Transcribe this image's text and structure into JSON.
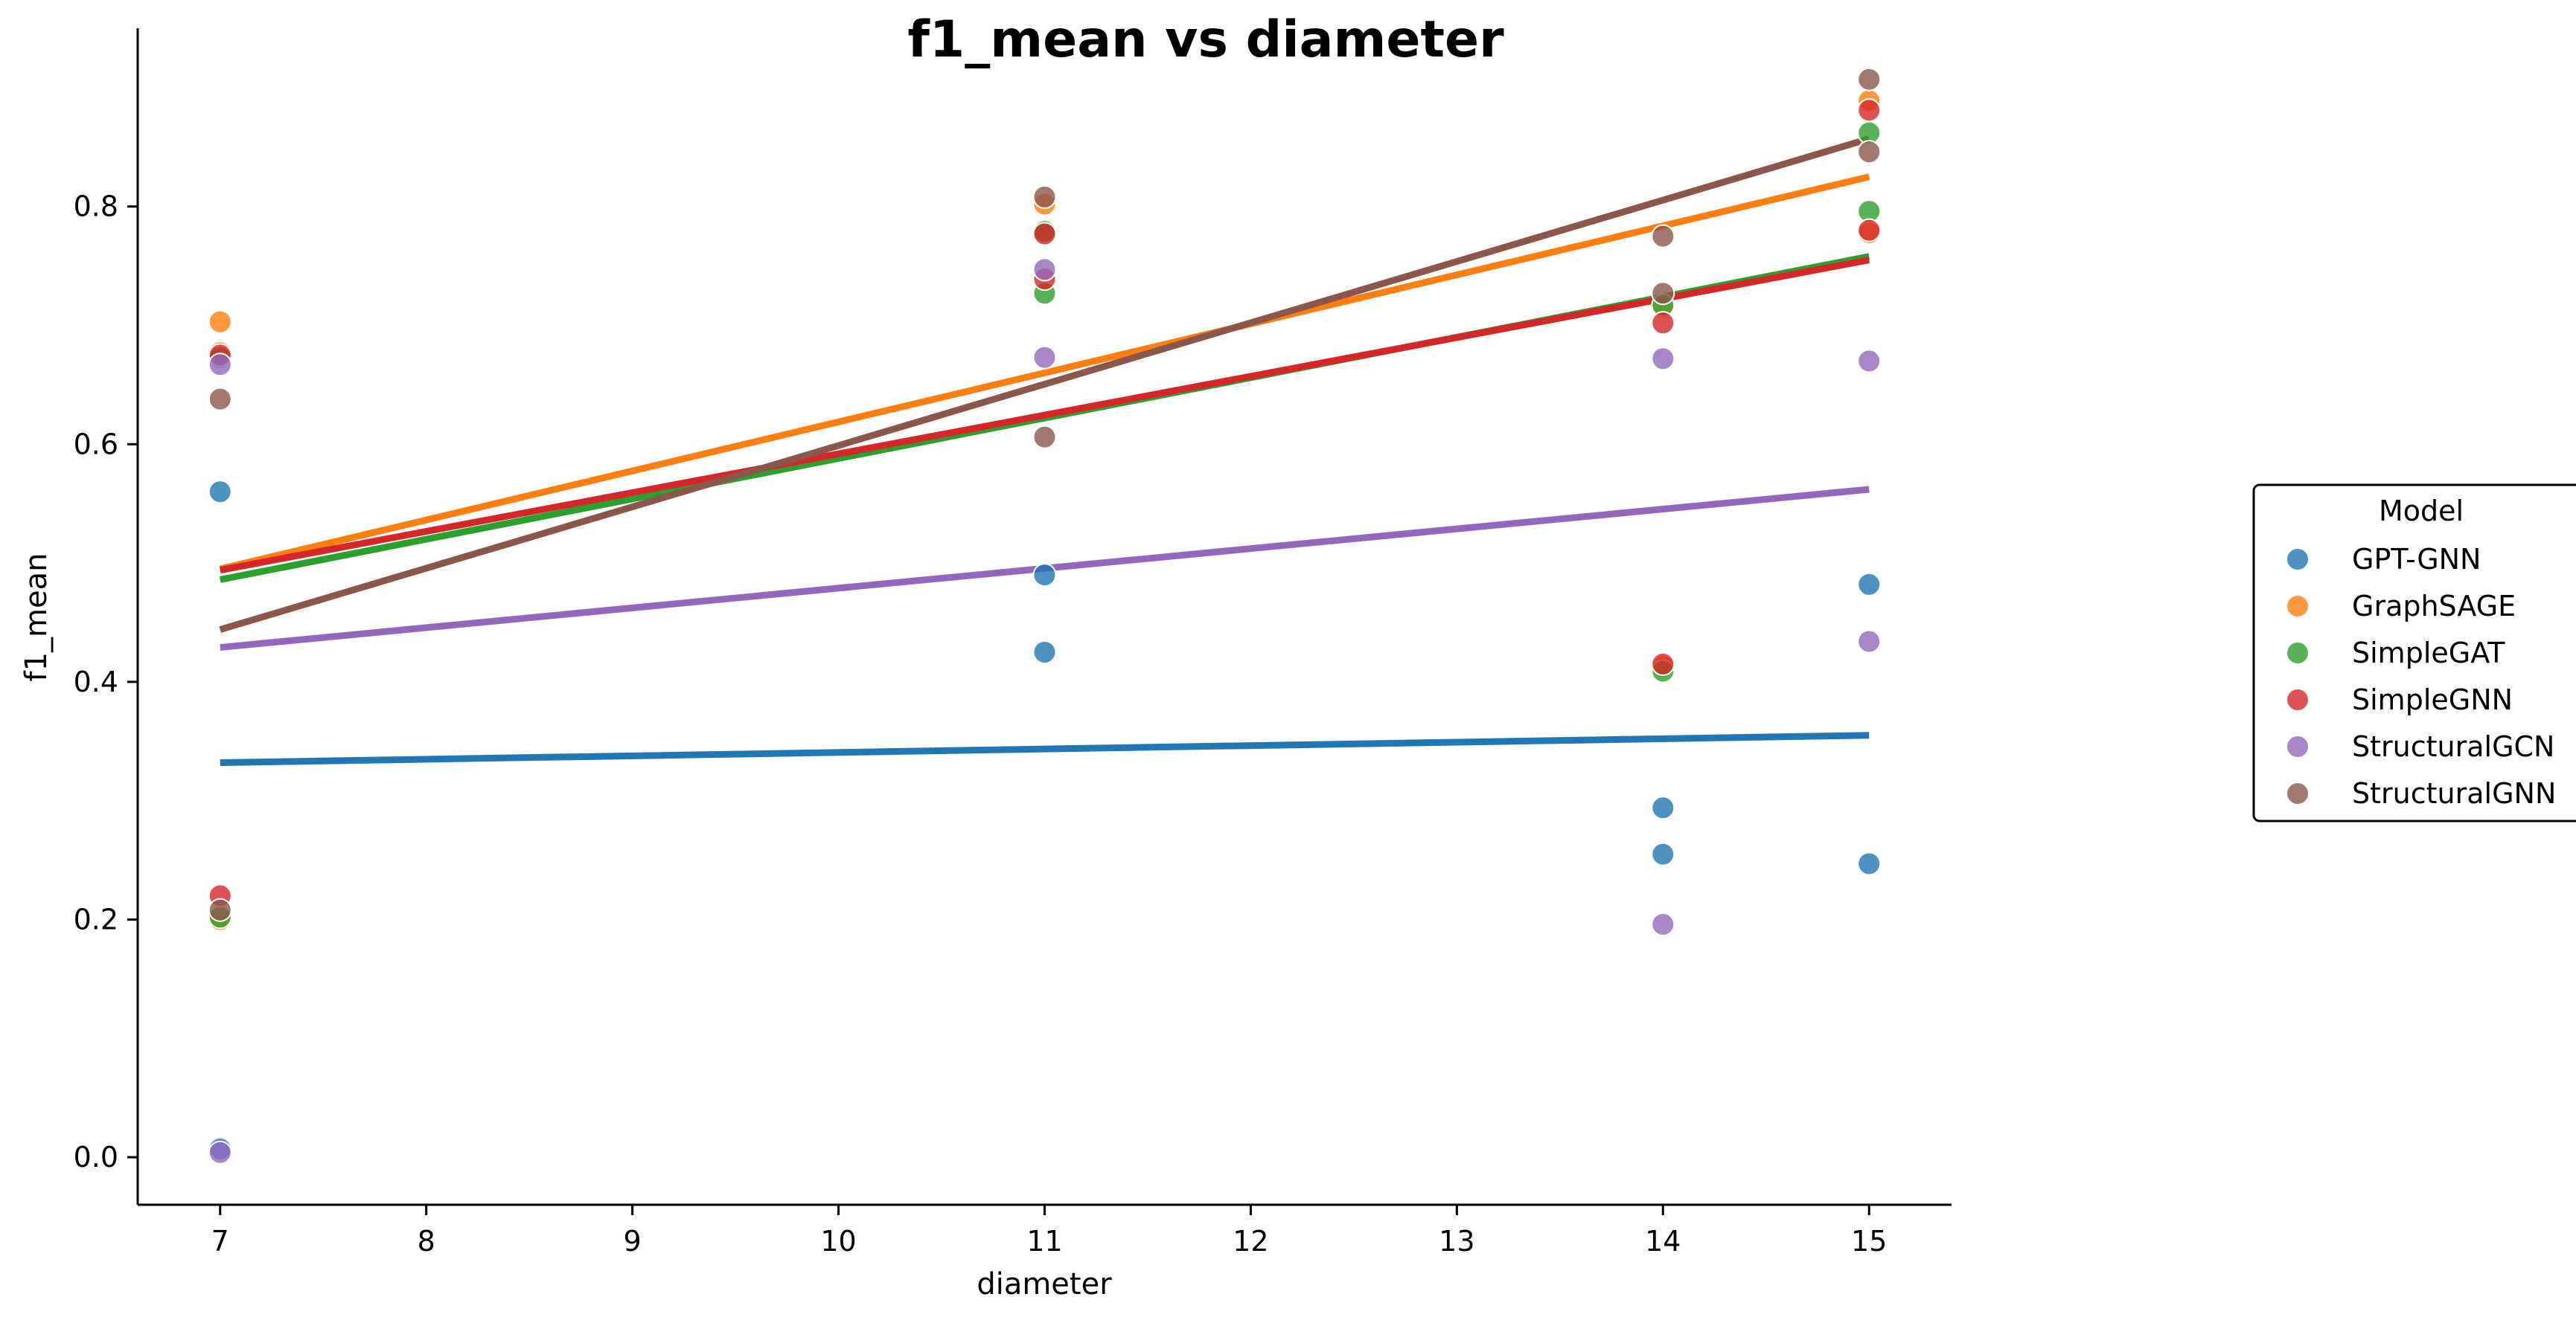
{
  "chart_data": {
    "type": "scatter",
    "title": "f1_mean vs diameter",
    "xlabel": "diameter",
    "ylabel": "f1_mean",
    "xlim": [
      6.6,
      15.4
    ],
    "ylim": [
      -0.04,
      0.95
    ],
    "xticks": [
      7,
      8,
      9,
      10,
      11,
      12,
      13,
      14,
      15
    ],
    "yticks": [
      0.0,
      0.2,
      0.4,
      0.6,
      0.8
    ],
    "ytick_labels": [
      "0.0",
      "0.2",
      "0.4",
      "0.6",
      "0.8"
    ],
    "grid": false,
    "legend": {
      "title": "Model",
      "placement": "right"
    },
    "series": [
      {
        "name": "GPT-GNN",
        "color": "#1f77b4",
        "points": [
          [
            7,
            0.56
          ],
          [
            7,
            0.007
          ],
          [
            11,
            0.49
          ],
          [
            11,
            0.425
          ],
          [
            14,
            0.294
          ],
          [
            14,
            0.255
          ],
          [
            15,
            0.482
          ],
          [
            15,
            0.247
          ]
        ],
        "fit": [
          [
            7,
            0.332
          ],
          [
            15,
            0.355
          ]
        ]
      },
      {
        "name": "GraphSAGE",
        "color": "#ff7f0e",
        "points": [
          [
            7,
            0.703
          ],
          [
            7,
            0.677
          ],
          [
            7,
            0.2
          ],
          [
            11,
            0.802
          ],
          [
            11,
            0.777
          ],
          [
            14,
            0.715
          ],
          [
            14,
            0.413
          ],
          [
            15,
            0.889
          ],
          [
            15,
            0.778
          ]
        ],
        "fit": [
          [
            7,
            0.495
          ],
          [
            15,
            0.825
          ]
        ]
      },
      {
        "name": "SimpleGAT",
        "color": "#2ca02c",
        "points": [
          [
            7,
            0.673
          ],
          [
            7,
            0.202
          ],
          [
            11,
            0.779
          ],
          [
            11,
            0.727
          ],
          [
            14,
            0.717
          ],
          [
            14,
            0.409
          ],
          [
            15,
            0.862
          ],
          [
            15,
            0.796
          ]
        ],
        "fit": [
          [
            7,
            0.486
          ],
          [
            15,
            0.758
          ]
        ]
      },
      {
        "name": "SimpleGNN",
        "color": "#d62728",
        "points": [
          [
            7,
            0.675
          ],
          [
            7,
            0.22
          ],
          [
            11,
            0.777
          ],
          [
            11,
            0.739
          ],
          [
            14,
            0.702
          ],
          [
            14,
            0.415
          ],
          [
            15,
            0.881
          ],
          [
            15,
            0.78
          ]
        ],
        "fit": [
          [
            7,
            0.494
          ],
          [
            15,
            0.755
          ]
        ]
      },
      {
        "name": "StructuralGCN",
        "color": "#9467bd",
        "points": [
          [
            7,
            0.667
          ],
          [
            7,
            0.004
          ],
          [
            11,
            0.747
          ],
          [
            11,
            0.673
          ],
          [
            14,
            0.672
          ],
          [
            14,
            0.196
          ],
          [
            15,
            0.67
          ],
          [
            15,
            0.434
          ]
        ],
        "fit": [
          [
            7,
            0.429
          ],
          [
            15,
            0.562
          ]
        ]
      },
      {
        "name": "StructuralGNN",
        "color": "#8c564b",
        "points": [
          [
            7,
            0.638
          ],
          [
            7,
            0.208
          ],
          [
            11,
            0.808
          ],
          [
            11,
            0.606
          ],
          [
            14,
            0.775
          ],
          [
            14,
            0.727
          ],
          [
            15,
            0.907
          ],
          [
            15,
            0.846
          ]
        ],
        "fit": [
          [
            7,
            0.444
          ],
          [
            15,
            0.857
          ]
        ]
      }
    ]
  }
}
